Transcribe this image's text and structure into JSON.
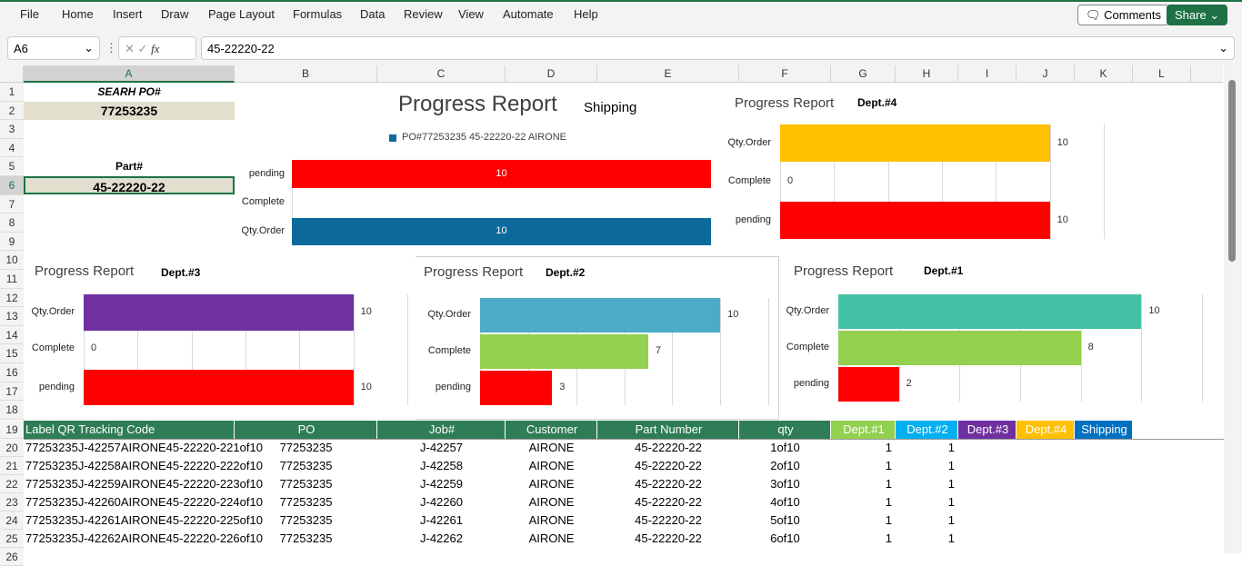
{
  "menu": [
    "File",
    "Home",
    "Insert",
    "Draw",
    "Page Layout",
    "Formulas",
    "Data",
    "Review",
    "View",
    "Automate",
    "Help"
  ],
  "comments_label": "Comments",
  "share_label": "Share",
  "name_box": "A6",
  "formula": "45-22220-22",
  "columns": [
    "A",
    "B",
    "C",
    "D",
    "E",
    "F",
    "G",
    "H",
    "I",
    "J",
    "K",
    "L"
  ],
  "search_label": "SEARH PO#",
  "search_value": "77253235",
  "part_label": "Part#",
  "part_value": "45-22220-22",
  "table": {
    "headers": [
      "Label QR Tracking Code",
      "PO",
      "Job#",
      "Customer",
      "Part Number",
      "qty",
      "Dept.#1",
      "Dept.#2",
      "Dept.#3",
      "Dept.#4",
      "Shipping"
    ],
    "header_colors": [
      "#2e7d57",
      "#2e7d57",
      "#2e7d57",
      "#2e7d57",
      "#2e7d57",
      "#2e7d57",
      "#92d050",
      "#00b0f0",
      "#7030a0",
      "#ffc000",
      "#0070c0"
    ],
    "rows": [
      [
        "77253235J-42257AIRONE45-22220-221of10",
        "77253235",
        "J-42257",
        "AIRONE",
        "45-22220-22",
        "1of10",
        "1",
        "1"
      ],
      [
        "77253235J-42258AIRONE45-22220-222of10",
        "77253235",
        "J-42258",
        "AIRONE",
        "45-22220-22",
        "2of10",
        "1",
        "1"
      ],
      [
        "77253235J-42259AIRONE45-22220-223of10",
        "77253235",
        "J-42259",
        "AIRONE",
        "45-22220-22",
        "3of10",
        "1",
        "1"
      ],
      [
        "77253235J-42260AIRONE45-22220-224of10",
        "77253235",
        "J-42260",
        "AIRONE",
        "45-22220-22",
        "4of10",
        "1",
        "1"
      ],
      [
        "77253235J-42261AIRONE45-22220-225of10",
        "77253235",
        "J-42261",
        "AIRONE",
        "45-22220-22",
        "5of10",
        "1",
        "1"
      ],
      [
        "77253235J-42262AIRONE45-22220-226of10",
        "77253235",
        "J-42262",
        "AIRONE",
        "45-22220-22",
        "6of10",
        "1",
        "1"
      ]
    ]
  },
  "charts": [
    {
      "id": "shipping",
      "title": "Progress Report",
      "subtitle": "Shipping",
      "legend": "PO#77253235  45-22220-22  AIRONE",
      "categories": [
        "pending",
        "Complete",
        "Qty.Order"
      ],
      "values": [
        10,
        0,
        10
      ],
      "colors": [
        "#ff0000",
        "#0c6b9c",
        "#0c6b9c"
      ],
      "axis_max": 10
    },
    {
      "id": "dept4",
      "title": "Progress Report",
      "subtitle": "Dept.#4",
      "categories": [
        "Qty.Order",
        "Complete",
        "pending"
      ],
      "values": [
        10,
        0,
        10
      ],
      "colors": [
        "#ffc000",
        "#ffc000",
        "#ff0000"
      ],
      "axis_max": 12
    },
    {
      "id": "dept3",
      "title": "Progress Report",
      "subtitle": "Dept.#3",
      "categories": [
        "Qty.Order",
        "Complete",
        "pending"
      ],
      "values": [
        10,
        0,
        10
      ],
      "colors": [
        "#7030a0",
        "#7030a0",
        "#ff0000"
      ],
      "axis_max": 12
    },
    {
      "id": "dept2",
      "title": "Progress Report",
      "subtitle": "Dept.#2",
      "categories": [
        "Qty.Order",
        "Complete",
        "pending"
      ],
      "values": [
        10,
        7,
        3
      ],
      "colors": [
        "#4bacc6",
        "#92d050",
        "#ff0000"
      ],
      "axis_max": 12
    },
    {
      "id": "dept1",
      "title": "Progress Report",
      "subtitle": "Dept.#1",
      "categories": [
        "Qty.Order",
        "Complete",
        "pending"
      ],
      "values": [
        10,
        8,
        2
      ],
      "colors": [
        "#43c1a4",
        "#92d050",
        "#ff0000"
      ],
      "axis_max": 12
    }
  ]
}
